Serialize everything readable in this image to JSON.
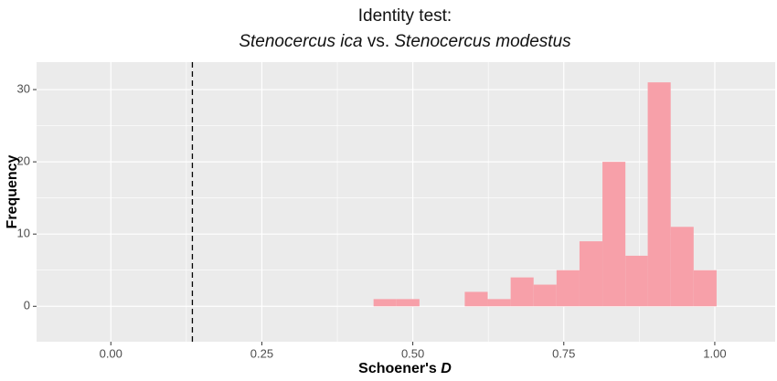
{
  "chart_data": {
    "type": "histogram",
    "title": "Identity test:",
    "subtitle": [
      "Stenocercus ica",
      "vs.",
      "Stenocercus modestus"
    ],
    "xlabel": [
      "Schoener's",
      "D"
    ],
    "ylabel": "Frequency",
    "bins": [
      0.435,
      0.473,
      0.511,
      0.549,
      0.586,
      0.624,
      0.662,
      0.7,
      0.738,
      0.776,
      0.814,
      0.852,
      0.889,
      0.927,
      0.965,
      1.003
    ],
    "values": [
      1,
      1,
      0,
      0,
      2,
      1,
      4,
      3,
      5,
      9,
      20,
      7,
      31,
      11,
      5
    ],
    "color": "#f7a0a9",
    "reference_line": 0.135,
    "xlim": [
      -0.123,
      1.1
    ],
    "ylim": [
      -4.9,
      33.8
    ],
    "xticks": [
      {
        "value": 0,
        "label": "0.00"
      },
      {
        "value": 0.25,
        "label": "0.25"
      },
      {
        "value": 0.5,
        "label": "0.50"
      },
      {
        "value": 0.75,
        "label": "0.75"
      },
      {
        "value": 1,
        "label": "1.00"
      }
    ],
    "yticks": [
      0,
      10,
      20,
      30
    ],
    "grid": true
  }
}
